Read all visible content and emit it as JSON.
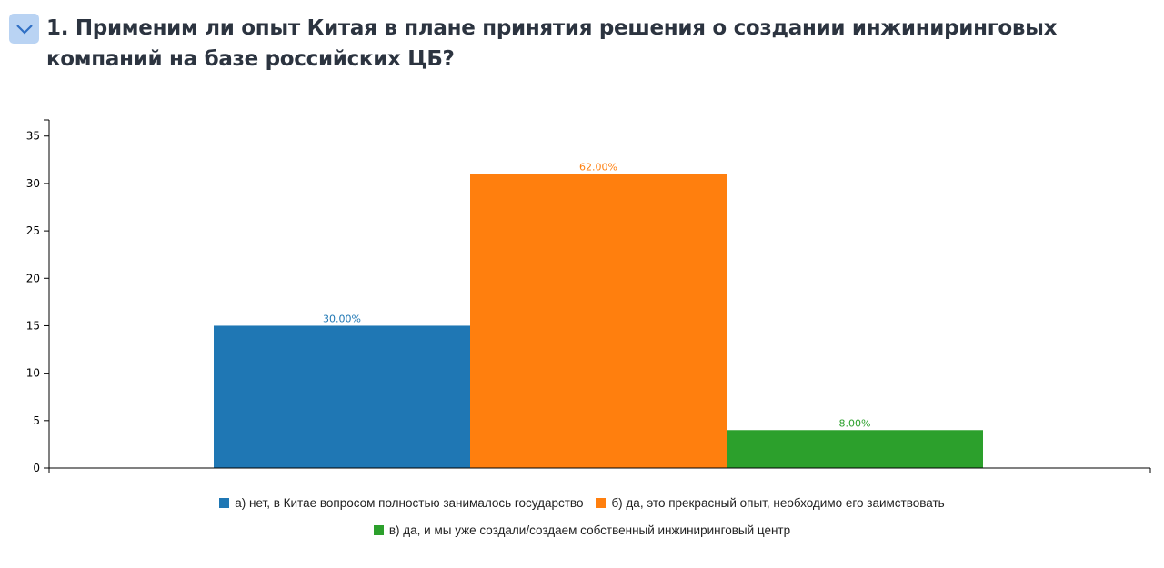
{
  "question": {
    "title": "1. Применим ли опыт Китая в плане принятия решения о создании инжиниринговых компаний на базе российских ЦБ?",
    "toggle_icon": "chevron-down-icon"
  },
  "chart_data": {
    "type": "bar",
    "title": "",
    "xlabel": "",
    "ylabel": "",
    "ylim": [
      0,
      36.7
    ],
    "yticks": [
      "0",
      "5",
      "10",
      "15",
      "20",
      "25",
      "30",
      "35"
    ],
    "legend_position": "bottom",
    "categories": [
      "а) нет, в Китае вопросом полностью занималось государство",
      "б) да, это прекрасный опыт, необходимо его заимствовать",
      "в) да, и мы уже создали/создаем собственный инжиниринговый центр"
    ],
    "values": [
      15,
      31,
      4
    ],
    "data_labels": [
      "30.00%",
      "62.00%",
      "8.00%"
    ],
    "colors": [
      "#1f77b4",
      "#ff7f0e",
      "#2ca02c"
    ]
  }
}
